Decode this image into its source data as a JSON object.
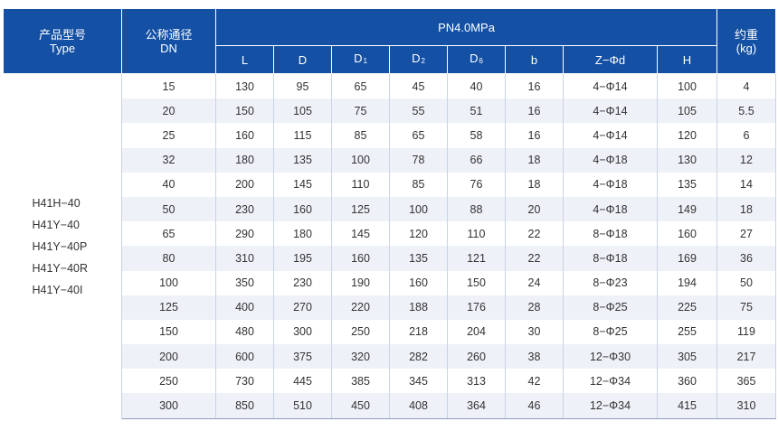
{
  "header": {
    "model_cn": "产品型号",
    "model_en": "Type",
    "dn_cn": "公称通径",
    "dn_en": "DN",
    "pressure": "PN4.0MPa",
    "weight_cn": "约重",
    "weight_en": "(kg)",
    "columns": [
      {
        "main": "L",
        "sub": ""
      },
      {
        "main": "D",
        "sub": ""
      },
      {
        "main": "D",
        "sub": "1"
      },
      {
        "main": "D",
        "sub": "2"
      },
      {
        "main": "D",
        "sub": "6"
      },
      {
        "main": "b",
        "sub": ""
      },
      {
        "main": "Z−Φd",
        "sub": ""
      },
      {
        "main": "H",
        "sub": ""
      }
    ]
  },
  "models": [
    "H41H−40",
    "H41Y−40",
    "H41Y−40P",
    "H41Y−40R",
    "H41Y−40I"
  ],
  "rows": [
    [
      "15",
      "130",
      "95",
      "65",
      "45",
      "40",
      "16",
      "4−Φ14",
      "100",
      "4"
    ],
    [
      "20",
      "150",
      "105",
      "75",
      "55",
      "51",
      "16",
      "4−Φ14",
      "105",
      "5.5"
    ],
    [
      "25",
      "160",
      "115",
      "85",
      "65",
      "58",
      "16",
      "4−Φ14",
      "120",
      "6"
    ],
    [
      "32",
      "180",
      "135",
      "100",
      "78",
      "66",
      "18",
      "4−Φ18",
      "130",
      "12"
    ],
    [
      "40",
      "200",
      "145",
      "110",
      "85",
      "76",
      "18",
      "4−Φ18",
      "135",
      "14"
    ],
    [
      "50",
      "230",
      "160",
      "125",
      "100",
      "88",
      "20",
      "4−Φ18",
      "149",
      "18"
    ],
    [
      "65",
      "290",
      "180",
      "145",
      "120",
      "110",
      "22",
      "8−Φ18",
      "160",
      "27"
    ],
    [
      "80",
      "310",
      "195",
      "160",
      "135",
      "121",
      "22",
      "8−Φ18",
      "169",
      "36"
    ],
    [
      "100",
      "350",
      "230",
      "190",
      "160",
      "150",
      "24",
      "8−Φ23",
      "194",
      "50"
    ],
    [
      "125",
      "400",
      "270",
      "220",
      "188",
      "176",
      "28",
      "8−Φ25",
      "225",
      "75"
    ],
    [
      "150",
      "480",
      "300",
      "250",
      "218",
      "204",
      "30",
      "8−Φ25",
      "255",
      "119"
    ],
    [
      "200",
      "600",
      "375",
      "320",
      "282",
      "260",
      "38",
      "12−Φ30",
      "305",
      "217"
    ],
    [
      "250",
      "730",
      "445",
      "385",
      "345",
      "313",
      "42",
      "12−Φ34",
      "360",
      "365"
    ],
    [
      "300",
      "850",
      "510",
      "450",
      "408",
      "364",
      "46",
      "12−Φ34",
      "415",
      "310"
    ]
  ]
}
